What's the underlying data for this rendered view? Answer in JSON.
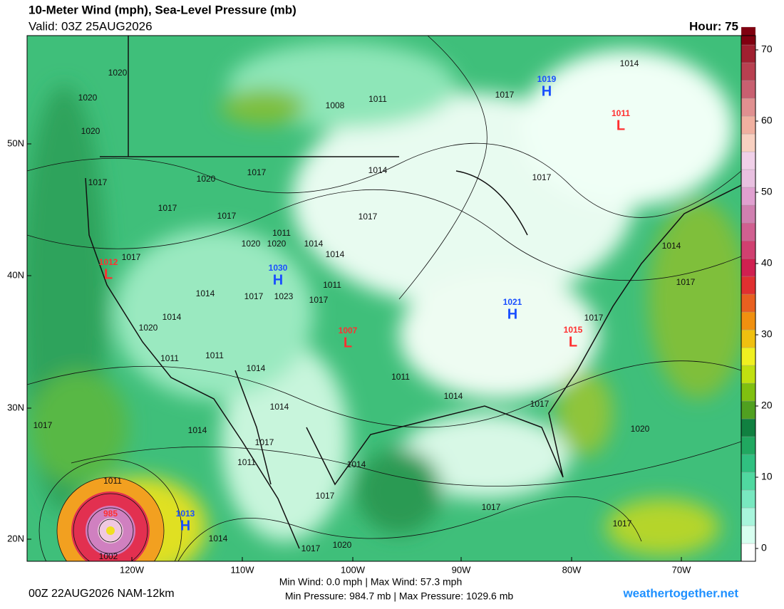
{
  "header": {
    "title": "10-Meter Wind (mph), Sea-Level Pressure (mb)",
    "valid": "Valid: 03Z 25AUG2026",
    "hour": "Hour: 75"
  },
  "colorbar": {
    "ticks": [
      0,
      10,
      20,
      30,
      40,
      50,
      60,
      70
    ]
  },
  "lat_labels": [
    "50N",
    "40N",
    "30N",
    "20N"
  ],
  "lon_labels": [
    "120W",
    "110W",
    "100W",
    "90W",
    "80W",
    "70W"
  ],
  "centers": [
    {
      "kind": "H",
      "value": "1019"
    },
    {
      "kind": "L",
      "value": "1011"
    },
    {
      "kind": "L",
      "value": "1012"
    },
    {
      "kind": "H",
      "value": "1030"
    },
    {
      "kind": "H",
      "value": "1021"
    },
    {
      "kind": "L",
      "value": "1007"
    },
    {
      "kind": "L",
      "value": "1015"
    },
    {
      "kind": "H",
      "value": "1013"
    },
    {
      "kind": "L",
      "value": "985"
    }
  ],
  "isobar_labels": [
    "1020",
    "1020",
    "1020",
    "1017",
    "1020",
    "1017",
    "1014",
    "1017",
    "1017",
    "1011",
    "1020",
    "1020",
    "1014",
    "1014",
    "1017",
    "1017",
    "1008",
    "1011",
    "1017",
    "1017",
    "1014",
    "1014",
    "1017",
    "1011",
    "1017",
    "1014",
    "1017",
    "1023",
    "1014",
    "1020",
    "1011",
    "1011",
    "1014",
    "1011",
    "1017",
    "1014",
    "1017",
    "1014",
    "1014",
    "1017",
    "1017",
    "1011",
    "1014",
    "1017",
    "1011",
    "1002",
    "1014",
    "1017",
    "1017",
    "1020",
    "1017",
    "1020"
  ],
  "footer": {
    "run": "00Z 22AUG2026 NAM-12km",
    "wind": "Min Wind:  0.0 mph | Max Wind: 57.3 mph",
    "pressure": "Min Pressure: 984.7 mb | Max Pressure: 1029.6 mb",
    "site": "weathertogether.net"
  }
}
